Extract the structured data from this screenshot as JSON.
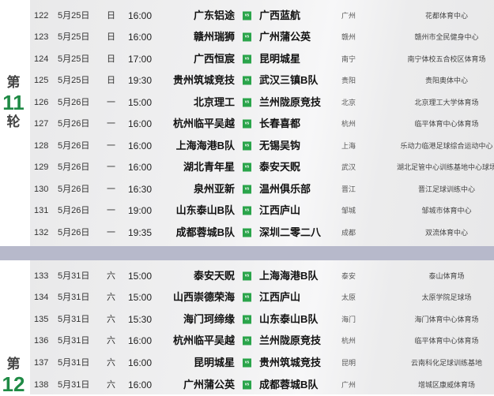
{
  "round11": {
    "prefix": "第",
    "number": "11",
    "suffix": "轮"
  },
  "round12": {
    "prefix": "第",
    "number": "12"
  },
  "vs_label": "vs",
  "colors": {
    "accent": "#2aa44a",
    "round_number": "#1f8a45",
    "separator": "#b7b9cb"
  },
  "matches11": [
    {
      "id": "122",
      "date": "5月25日",
      "weekday": "日",
      "time": "16:00",
      "home": "广东铝途",
      "away": "广西蓝航",
      "city": "广州",
      "venue": "花都体育中心"
    },
    {
      "id": "123",
      "date": "5月25日",
      "weekday": "日",
      "time": "16:00",
      "home": "赣州瑞狮",
      "away": "广州蒲公英",
      "city": "赣州",
      "venue": "赣州市全民健身中心"
    },
    {
      "id": "124",
      "date": "5月25日",
      "weekday": "日",
      "time": "17:00",
      "home": "广西恒宸",
      "away": "昆明城星",
      "city": "南宁",
      "venue": "南宁体校五合校区体育场"
    },
    {
      "id": "125",
      "date": "5月25日",
      "weekday": "日",
      "time": "19:30",
      "home": "贵州筑城竞技",
      "away": "武汉三镇B队",
      "city": "贵阳",
      "venue": "贵阳奥体中心"
    },
    {
      "id": "126",
      "date": "5月26日",
      "weekday": "一",
      "time": "15:00",
      "home": "北京理工",
      "away": "兰州陇原竞技",
      "city": "北京",
      "venue": "北京理工大学体育场"
    },
    {
      "id": "127",
      "date": "5月26日",
      "weekday": "一",
      "time": "16:00",
      "home": "杭州临平吴越",
      "away": "长春喜都",
      "city": "杭州",
      "venue": "临平体育中心体育场"
    },
    {
      "id": "128",
      "date": "5月26日",
      "weekday": "一",
      "time": "16:00",
      "home": "上海海港B队",
      "away": "无锡吴钩",
      "city": "上海",
      "venue": "乐动力临港足球综合运动中心"
    },
    {
      "id": "129",
      "date": "5月26日",
      "weekday": "一",
      "time": "16:00",
      "home": "湖北青年星",
      "away": "泰安天贶",
      "city": "武汉",
      "venue": "湖北足管中心训练基地中心球场"
    },
    {
      "id": "130",
      "date": "5月26日",
      "weekday": "一",
      "time": "16:30",
      "home": "泉州亚新",
      "away": "温州俱乐部",
      "city": "晋江",
      "venue": "晋江足球训练中心"
    },
    {
      "id": "131",
      "date": "5月26日",
      "weekday": "一",
      "time": "19:00",
      "home": "山东泰山B队",
      "away": "江西庐山",
      "city": "邹城",
      "venue": "邹城市体育中心"
    },
    {
      "id": "132",
      "date": "5月26日",
      "weekday": "一",
      "time": "19:35",
      "home": "成都蓉城B队",
      "away": "深圳二零二八",
      "city": "成都",
      "venue": "双流体育中心"
    }
  ],
  "matches12": [
    {
      "id": "133",
      "date": "5月31日",
      "weekday": "六",
      "time": "15:00",
      "home": "泰安天贶",
      "away": "上海海港B队",
      "city": "泰安",
      "venue": "泰山体育场"
    },
    {
      "id": "134",
      "date": "5月31日",
      "weekday": "六",
      "time": "15:00",
      "home": "山西崇德荣海",
      "away": "江西庐山",
      "city": "太原",
      "venue": "太原学院足球场"
    },
    {
      "id": "135",
      "date": "5月31日",
      "weekday": "六",
      "time": "15:30",
      "home": "海门珂缔缘",
      "away": "山东泰山B队",
      "city": "海门",
      "venue": "海门体育中心体育场"
    },
    {
      "id": "136",
      "date": "5月31日",
      "weekday": "六",
      "time": "16:00",
      "home": "杭州临平吴越",
      "away": "兰州陇原竞技",
      "city": "杭州",
      "venue": "临平体育中心体育场"
    },
    {
      "id": "137",
      "date": "5月31日",
      "weekday": "六",
      "time": "16:00",
      "home": "昆明城星",
      "away": "贵州筑城竞技",
      "city": "昆明",
      "venue": "云南科化足球训练基地"
    },
    {
      "id": "138",
      "date": "5月31日",
      "weekday": "六",
      "time": "16:00",
      "home": "广州蒲公英",
      "away": "成都蓉城B队",
      "city": "广州",
      "venue": "增城区康威体育场"
    }
  ]
}
